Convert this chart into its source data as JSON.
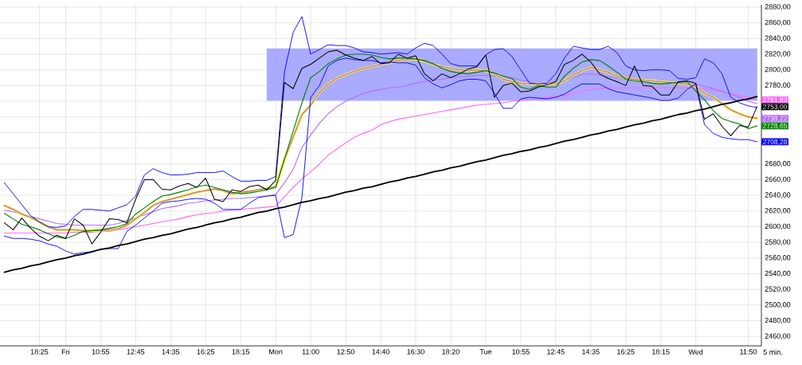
{
  "chart_data": {
    "type": "line",
    "grid": true,
    "categories": [
      null,
      null,
      null,
      null,
      "18:25",
      null,
      null,
      "Fri",
      null,
      null,
      null,
      "10:55",
      null,
      null,
      null,
      "12:45",
      null,
      null,
      null,
      "14:35",
      null,
      null,
      null,
      "16:25",
      null,
      null,
      null,
      "18:15",
      null,
      null,
      null,
      "Mon",
      null,
      null,
      null,
      "11:00",
      null,
      null,
      null,
      "12:50",
      null,
      null,
      null,
      "14:40",
      null,
      null,
      null,
      "16:30",
      null,
      null,
      null,
      "18:20",
      null,
      null,
      null,
      "Tue",
      null,
      null,
      null,
      "10:55",
      null,
      null,
      null,
      "12:45",
      null,
      null,
      null,
      "14:35",
      null,
      null,
      null,
      "16:25",
      null,
      null,
      null,
      "18:15",
      null,
      null,
      null,
      "Wed",
      null,
      null,
      null,
      null,
      null,
      "11:50",
      null
    ],
    "ylim": [
      2448,
      2883
    ],
    "yticks": [
      {
        "value": 2460,
        "label": "2460,00"
      },
      {
        "value": 2480,
        "label": "2480,00"
      },
      {
        "value": 2500,
        "label": "2500,00"
      },
      {
        "value": 2520,
        "label": "2520,00"
      },
      {
        "value": 2540,
        "label": "2540,00"
      },
      {
        "value": 2560,
        "label": "2560,00"
      },
      {
        "value": 2580,
        "label": "2580,00"
      },
      {
        "value": 2600,
        "label": "2600,00"
      },
      {
        "value": 2620,
        "label": "2620,00"
      },
      {
        "value": 2640,
        "label": "2640,00"
      },
      {
        "value": 2660,
        "label": "2660,00"
      },
      {
        "value": 2680,
        "label": "2680,00"
      },
      {
        "value": 2700,
        "label": null
      },
      {
        "value": 2720,
        "label": null
      },
      {
        "value": 2740,
        "label": null
      },
      {
        "value": 2760,
        "label": null
      },
      {
        "value": 2780,
        "label": "2780,00"
      },
      {
        "value": 2800,
        "label": "2800,00"
      },
      {
        "value": 2820,
        "label": "2820,00"
      },
      {
        "value": 2840,
        "label": "2840,00"
      },
      {
        "value": 2860,
        "label": "2860,00"
      },
      {
        "value": 2880,
        "label": "2880,00"
      }
    ],
    "xlabel": "5 min.",
    "series": [
      {
        "type": "area",
        "color": "#aaaaff",
        "values": [
          null,
          null,
          null,
          null,
          null,
          null,
          null,
          null,
          null,
          null,
          null,
          null,
          null,
          null,
          null,
          null,
          null,
          null,
          null,
          null,
          null,
          null,
          null,
          null,
          null,
          null,
          null,
          null,
          null,
          null,
          null,
          null,
          null,
          null,
          null,
          null,
          null,
          null,
          null,
          null,
          null,
          null,
          null,
          null,
          null,
          null,
          null,
          null,
          null,
          null,
          null,
          null,
          null,
          null,
          null,
          null,
          null,
          null,
          null,
          null,
          null,
          null,
          null,
          null,
          null,
          null,
          null,
          null,
          null,
          null,
          null,
          null,
          null,
          null,
          null,
          null,
          null,
          null,
          null,
          null,
          null,
          null,
          null,
          null,
          null,
          null,
          null
        ],
        "upper": [
          null,
          null,
          null,
          null,
          null,
          null,
          null,
          null,
          null,
          null,
          null,
          null,
          null,
          null,
          null,
          null,
          null,
          null,
          null,
          null,
          null,
          null,
          null,
          null,
          null,
          null,
          null,
          null,
          null,
          null,
          2827,
          2827,
          2827,
          2827,
          2827,
          2827,
          2827,
          2827,
          2827,
          2827,
          2827,
          2827,
          2827,
          2827,
          2827,
          2827,
          2827,
          2827,
          2827,
          2827,
          2827,
          2827,
          2827,
          2827,
          2827,
          2827,
          2827,
          2827,
          2827,
          2827,
          2827,
          2827,
          2827,
          2827,
          2827,
          2827,
          2827,
          2827,
          2827,
          2827,
          2827,
          2827,
          2827,
          2827,
          2827,
          2827,
          2827,
          2827,
          2827,
          2827,
          2827,
          2827,
          2827,
          2827,
          2827,
          2827,
          2827
        ],
        "lower": [
          null,
          null,
          null,
          null,
          null,
          null,
          null,
          null,
          null,
          null,
          null,
          null,
          null,
          null,
          null,
          null,
          null,
          null,
          null,
          null,
          null,
          null,
          null,
          null,
          null,
          null,
          null,
          null,
          null,
          null,
          2761,
          2761,
          2761,
          2761,
          2761,
          2761,
          2761,
          2761,
          2761,
          2761,
          2761,
          2761,
          2761,
          2761,
          2761,
          2761,
          2761,
          2761,
          2761,
          2761,
          2761,
          2761,
          2761,
          2761,
          2761,
          2761,
          2761,
          2761,
          2761,
          2761,
          2761,
          2761,
          2761,
          2761,
          2761,
          2761,
          2761,
          2761,
          2761,
          2761,
          2761,
          2761,
          2761,
          2761,
          2761,
          2761,
          2761,
          2761,
          2761,
          2761,
          2761,
          2761,
          2761,
          2761,
          2761,
          2761,
          2761
        ]
      },
      {
        "color": "#ff66ff",
        "values": [
          2592,
          2592,
          2592,
          2592,
          2592,
          2592,
          2592,
          2592,
          2593,
          2593,
          2593,
          2594,
          2594,
          2596,
          2598,
          2600,
          2602,
          2604,
          2606,
          2608,
          2610,
          2613,
          2615,
          2617,
          2618,
          2620,
          2621,
          2622,
          2623,
          2624,
          2625,
          2626,
          2638,
          2650,
          2661,
          2670,
          2680,
          2691,
          2699,
          2707,
          2714,
          2719,
          2723,
          2730,
          2734,
          2737,
          2739,
          2741,
          2743,
          2745,
          2747,
          2749,
          2751,
          2753,
          2755,
          2756,
          2757,
          2758,
          2760,
          2761,
          2762,
          2763,
          2765,
          2766,
          2767,
          2770,
          2773,
          2775,
          2776,
          2777,
          2777,
          2777,
          2777,
          2777,
          2777,
          2777,
          2777,
          2777,
          2777,
          2777,
          2776,
          2774,
          2772,
          2770,
          2767,
          2765,
          2761.83
        ],
        "value_labels": [
          null,
          null,
          null,
          null,
          null,
          null,
          null,
          null,
          null,
          null,
          null,
          null,
          null,
          null,
          null,
          null,
          null,
          null,
          null,
          null,
          null,
          null,
          null,
          null,
          null,
          null,
          null,
          null,
          null,
          null,
          null,
          null,
          null,
          null,
          null,
          null,
          null,
          null,
          null,
          null,
          null,
          null,
          null,
          null,
          null,
          null,
          null,
          null,
          null,
          null,
          null,
          null,
          null,
          null,
          null,
          null,
          null,
          null,
          null,
          null,
          null,
          null,
          null,
          null,
          null,
          null,
          null,
          null,
          null,
          null,
          null,
          null,
          null,
          null,
          null,
          null,
          null,
          null,
          null,
          null,
          null,
          null,
          null,
          null,
          null,
          null,
          "2761,83"
        ]
      },
      {
        "color": "#b070ff",
        "values": [
          2621,
          2619,
          2616,
          2613,
          2610,
          2607,
          2604,
          2603,
          2602,
          2602,
          2602,
          2602,
          2602,
          2604,
          2608,
          2611,
          2615,
          2619,
          2623,
          2625,
          2627,
          2630,
          2631,
          2633,
          2634,
          2635,
          2636,
          2636,
          2637,
          2638,
          2639,
          2641,
          2656,
          2673,
          2701,
          2717,
          2732,
          2744,
          2753,
          2760,
          2765,
          2770,
          2773,
          2775,
          2777,
          2778,
          2780,
          2783,
          2785,
          2787,
          2788,
          2790,
          2791,
          2792,
          2793,
          2793,
          2792,
          2792,
          2790,
          2787,
          2785,
          2783,
          2783,
          2784,
          2786,
          2790,
          2794,
          2795,
          2793,
          2791,
          2790,
          2789,
          2788,
          2787,
          2786,
          2785,
          2785,
          2784,
          2783,
          2782,
          2779,
          2776,
          2773,
          2769,
          2765,
          2760,
          2757
        ]
      },
      {
        "color": "#ffff00",
        "values": [
          2627,
          2622,
          2616,
          2612,
          2606,
          2600,
          2596,
          2596,
          2596,
          2595,
          2595,
          2595,
          2596,
          2597,
          2602,
          2610,
          2618,
          2627,
          2632,
          2635,
          2638,
          2641,
          2644,
          2646,
          2648,
          2646,
          2642,
          2644,
          2645,
          2647,
          2649,
          2651,
          2686,
          2714,
          2743,
          2755,
          2771,
          2782,
          2789,
          2794,
          2798,
          2802,
          2804,
          2807,
          2809,
          2812,
          2813,
          2814,
          2811,
          2807,
          2804,
          2802,
          2800,
          2799,
          2800,
          2799,
          2795,
          2788,
          2785,
          2783,
          2782,
          2782,
          2782,
          2782,
          2786,
          2793,
          2799,
          2803,
          2800,
          2797,
          2792,
          2790,
          2788,
          2787,
          2786,
          2785,
          2784,
          2783,
          2782,
          2779,
          2770,
          2765,
          2757,
          2749,
          2744,
          2740,
          2738
        ]
      },
      {
        "color": "#b266ff",
        "line_style": "dotted",
        "values": [
          2627,
          2622,
          2616,
          2612,
          2606,
          2600,
          2596,
          2596,
          2596,
          2595,
          2595,
          2595,
          2596,
          2597,
          2602,
          2610,
          2618,
          2627,
          2632,
          2635,
          2638,
          2641,
          2644,
          2646,
          2648,
          2646,
          2642,
          2644,
          2645,
          2647,
          2649,
          2651,
          2686,
          2714,
          2743,
          2755,
          2771,
          2782,
          2789,
          2794,
          2798,
          2802,
          2804,
          2807,
          2809,
          2812,
          2813,
          2814,
          2811,
          2807,
          2804,
          2802,
          2800,
          2799,
          2800,
          2799,
          2795,
          2788,
          2785,
          2783,
          2782,
          2782,
          2782,
          2782,
          2786,
          2793,
          2799,
          2803,
          2800,
          2797,
          2792,
          2790,
          2788,
          2787,
          2786,
          2785,
          2784,
          2783,
          2782,
          2779,
          2770,
          2765,
          2757,
          2749,
          2744,
          2740,
          2738.22
        ],
        "value_labels": [
          null,
          null,
          null,
          null,
          null,
          null,
          null,
          null,
          null,
          null,
          null,
          null,
          null,
          null,
          null,
          null,
          null,
          null,
          null,
          null,
          null,
          null,
          null,
          null,
          null,
          null,
          null,
          null,
          null,
          null,
          null,
          null,
          null,
          null,
          null,
          null,
          null,
          null,
          null,
          null,
          null,
          null,
          null,
          null,
          null,
          null,
          null,
          null,
          null,
          null,
          null,
          null,
          null,
          null,
          null,
          null,
          null,
          null,
          null,
          null,
          null,
          null,
          null,
          null,
          null,
          null,
          null,
          null,
          null,
          null,
          null,
          null,
          null,
          null,
          null,
          null,
          null,
          null,
          null,
          null,
          null,
          null,
          null,
          null,
          null,
          null,
          "2738,22"
        ]
      },
      {
        "color": "#008000",
        "values": [
          2617,
          2610,
          2603,
          2600,
          2596,
          2591,
          2587,
          2585,
          2589,
          2594,
          2595,
          2596,
          2598,
          2600,
          2604,
          2616,
          2624,
          2632,
          2639,
          2641,
          2644,
          2647,
          2651,
          2653,
          2650,
          2647,
          2644,
          2642,
          2643,
          2645,
          2647,
          2650,
          2686,
          2722,
          2758,
          2790,
          2798,
          2808,
          2814,
          2819,
          2820,
          2820,
          2819,
          2816,
          2814,
          2815,
          2815,
          2814,
          2812,
          2808,
          2802,
          2798,
          2796,
          2795,
          2797,
          2799,
          2796,
          2792,
          2789,
          2778,
          2775,
          2780,
          2778,
          2778,
          2792,
          2802,
          2810,
          2813,
          2812,
          2805,
          2797,
          2788,
          2786,
          2785,
          2783,
          2782,
          2783,
          2784,
          2785,
          2773,
          2762,
          2748,
          2738,
          2734,
          2731,
          2725,
          2728.65
        ],
        "value_labels": [
          null,
          null,
          null,
          null,
          null,
          null,
          null,
          null,
          null,
          null,
          null,
          null,
          null,
          null,
          null,
          null,
          null,
          null,
          null,
          null,
          null,
          null,
          null,
          null,
          null,
          null,
          null,
          null,
          null,
          null,
          null,
          null,
          null,
          null,
          null,
          null,
          null,
          null,
          null,
          null,
          null,
          null,
          null,
          null,
          null,
          null,
          null,
          null,
          null,
          null,
          null,
          null,
          null,
          null,
          null,
          null,
          null,
          null,
          null,
          null,
          null,
          null,
          null,
          null,
          null,
          null,
          null,
          null,
          null,
          null,
          null,
          null,
          null,
          null,
          null,
          null,
          null,
          null,
          null,
          null,
          null,
          null,
          null,
          null,
          null,
          null,
          "2728,65"
        ]
      },
      {
        "color": "#0000ff",
        "values": [
          2656,
          2642,
          2628,
          2614,
          2606,
          2600,
          2599,
          2601,
          2613,
          2622,
          2622,
          2621,
          2620,
          2624,
          2628,
          2639,
          2666,
          2674,
          2669,
          2666,
          2666,
          2667,
          2669,
          2669,
          2669,
          2671,
          2664,
          2658,
          2658,
          2659,
          2659,
          2664,
          2797,
          2848,
          2868,
          2820,
          2826,
          2832,
          2831,
          2831,
          2828,
          2823,
          2822,
          2820,
          2821,
          2822,
          2820,
          2828,
          2834,
          2831,
          2820,
          2808,
          2805,
          2805,
          2805,
          2819,
          2826,
          2827,
          2817,
          2800,
          2783,
          2782,
          2783,
          2795,
          2815,
          2830,
          2828,
          2826,
          2826,
          2830,
          2822,
          2805,
          2800,
          2799,
          2800,
          2800,
          2799,
          2789,
          2788,
          2790,
          2814,
          2809,
          2795,
          2765,
          2758,
          2754,
          2752
        ]
      },
      {
        "color": "#0000ff",
        "values": [
          2588,
          2585,
          2585,
          2584,
          2582,
          2578,
          2575,
          2569,
          2565,
          2567,
          2568,
          2571,
          2572,
          2572,
          2594,
          2602,
          2611,
          2620,
          2630,
          2632,
          2633,
          2635,
          2636,
          2635,
          2630,
          2622,
          2622,
          2622,
          2630,
          2637,
          2639,
          2640,
          2586,
          2590,
          2637,
          2765,
          2780,
          2805,
          2812,
          2815,
          2813,
          2812,
          2812,
          2809,
          2810,
          2809,
          2809,
          2806,
          2790,
          2782,
          2777,
          2781,
          2786,
          2788,
          2788,
          2786,
          2770,
          2751,
          2751,
          2763,
          2765,
          2764,
          2763,
          2765,
          2769,
          2776,
          2782,
          2782,
          2782,
          2776,
          2772,
          2770,
          2768,
          2766,
          2764,
          2761,
          2761,
          2764,
          2775,
          2782,
          2730,
          2719,
          2714,
          2712,
          2711,
          2711,
          2708.28
        ],
        "value_labels": [
          null,
          null,
          null,
          null,
          null,
          null,
          null,
          null,
          null,
          null,
          null,
          null,
          null,
          null,
          null,
          null,
          null,
          null,
          null,
          null,
          null,
          null,
          null,
          null,
          null,
          null,
          null,
          null,
          null,
          null,
          null,
          null,
          null,
          null,
          null,
          null,
          null,
          null,
          null,
          null,
          null,
          null,
          null,
          null,
          null,
          null,
          null,
          null,
          null,
          null,
          null,
          null,
          null,
          null,
          null,
          null,
          null,
          null,
          null,
          null,
          null,
          null,
          null,
          null,
          null,
          null,
          null,
          null,
          null,
          null,
          null,
          null,
          null,
          null,
          null,
          null,
          null,
          null,
          null,
          null,
          null,
          null,
          null,
          null,
          null,
          null,
          "2708,28"
        ]
      },
      {
        "color": "#000000",
        "values": [
          2542,
          2545,
          2547,
          2550,
          2552,
          2555,
          2558,
          2560,
          2563,
          2565,
          2568,
          2571,
          2573,
          2576,
          2578,
          2581,
          2584,
          2586,
          2589,
          2591,
          2594,
          2597,
          2599,
          2602,
          2605,
          2607,
          2610,
          2612,
          2615,
          2618,
          2620,
          2623,
          2625,
          2628,
          2631,
          2633,
          2636,
          2638,
          2641,
          2644,
          2646,
          2649,
          2651,
          2654,
          2657,
          2659,
          2662,
          2664,
          2667,
          2670,
          2672,
          2675,
          2677,
          2680,
          2683,
          2685,
          2688,
          2691,
          2693,
          2696,
          2698,
          2701,
          2703,
          2706,
          2709,
          2711,
          2714,
          2717,
          2719,
          2722,
          2724,
          2727,
          2730,
          2732,
          2735,
          2737,
          2740,
          2743,
          2745,
          2748,
          2750,
          2753,
          2756,
          2758,
          2761,
          2763,
          2766
        ]
      },
      {
        "color": "#000000",
        "values": [
          2605,
          2596,
          2611,
          2598,
          2588,
          2582,
          2589,
          2585,
          2610,
          2602,
          2578,
          2593,
          2610,
          2609,
          2605,
          2635,
          2660,
          2660,
          2648,
          2647,
          2652,
          2655,
          2650,
          2662,
          2635,
          2632,
          2647,
          2645,
          2651,
          2653,
          2647,
          2659,
          2784,
          2776,
          2802,
          2807,
          2815,
          2823,
          2825,
          2819,
          2815,
          2812,
          2817,
          2808,
          2809,
          2820,
          2815,
          2818,
          2795,
          2786,
          2795,
          2790,
          2795,
          2801,
          2804,
          2819,
          2765,
          2780,
          2783,
          2772,
          2773,
          2778,
          2781,
          2785,
          2807,
          2812,
          2820,
          2810,
          2795,
          2789,
          2785,
          2780,
          2805,
          2780,
          2779,
          2768,
          2768,
          2785,
          2786,
          2783,
          2737,
          2744,
          2728,
          2716,
          2729,
          2727,
          2753
        ],
        "value_labels": [
          null,
          null,
          null,
          null,
          null,
          null,
          null,
          null,
          null,
          null,
          null,
          null,
          null,
          null,
          null,
          null,
          null,
          null,
          null,
          null,
          null,
          null,
          null,
          null,
          null,
          null,
          null,
          null,
          null,
          null,
          null,
          null,
          null,
          null,
          null,
          null,
          null,
          null,
          null,
          null,
          null,
          null,
          null,
          null,
          null,
          null,
          null,
          null,
          null,
          null,
          null,
          null,
          null,
          null,
          null,
          null,
          null,
          null,
          null,
          null,
          null,
          null,
          null,
          null,
          null,
          null,
          null,
          null,
          null,
          null,
          null,
          null,
          null,
          null,
          null,
          null,
          null,
          null,
          null,
          null,
          null,
          null,
          null,
          null,
          null,
          null,
          "2753,00"
        ]
      }
    ]
  }
}
